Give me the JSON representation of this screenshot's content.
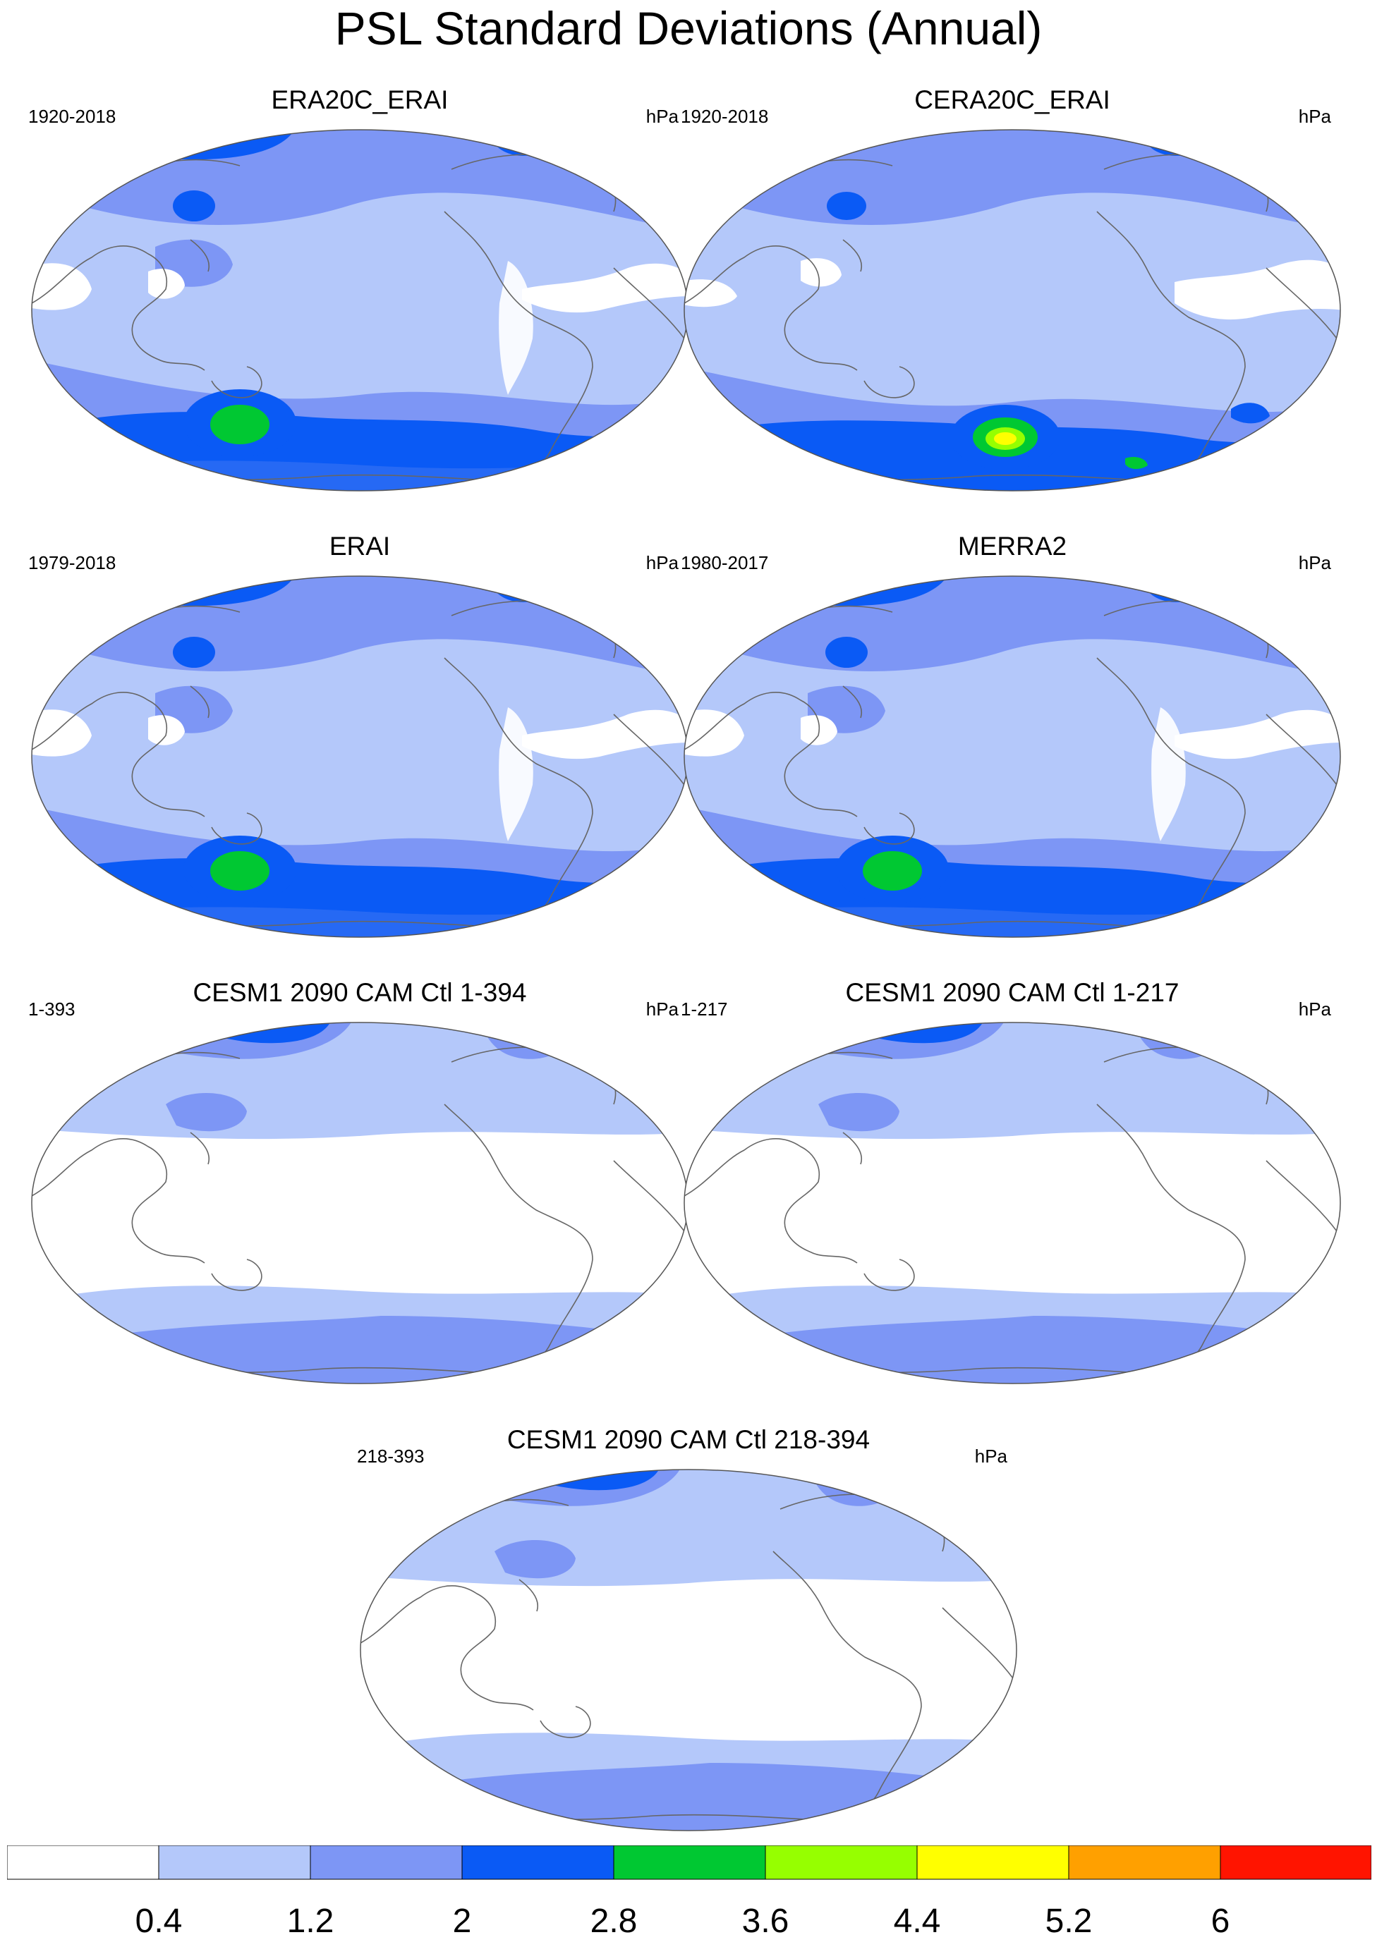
{
  "title": "PSL Standard Deviations (Annual)",
  "panels": [
    {
      "title": "ERA20C_ERAI",
      "period": "1920-2018",
      "units": "hPa"
    },
    {
      "title": "CERA20C_ERAI",
      "period": "1920-2018",
      "units": "hPa"
    },
    {
      "title": "ERAI",
      "period": "1979-2018",
      "units": "hPa"
    },
    {
      "title": "MERRA2",
      "period": "1980-2017",
      "units": "hPa"
    },
    {
      "title": "CESM1 2090 CAM Ctl 1-394",
      "period": "1-393",
      "units": "hPa"
    },
    {
      "title": "CESM1 2090 CAM Ctl 1-217",
      "period": "1-217",
      "units": "hPa"
    },
    {
      "title": "CESM1 2090 CAM Ctl 218-394",
      "period": "218-393",
      "units": "hPa"
    }
  ],
  "colorbar": {
    "labels": [
      "0.4",
      "1.2",
      "2",
      "2.8",
      "3.6",
      "4.4",
      "5.2",
      "6"
    ],
    "colors": [
      "#ffffff",
      "#b4c8fa",
      "#7d96f5",
      "#0a5af5",
      "#00c832",
      "#96ff00",
      "#ffff00",
      "#ffa000",
      "#ff1400"
    ]
  }
}
